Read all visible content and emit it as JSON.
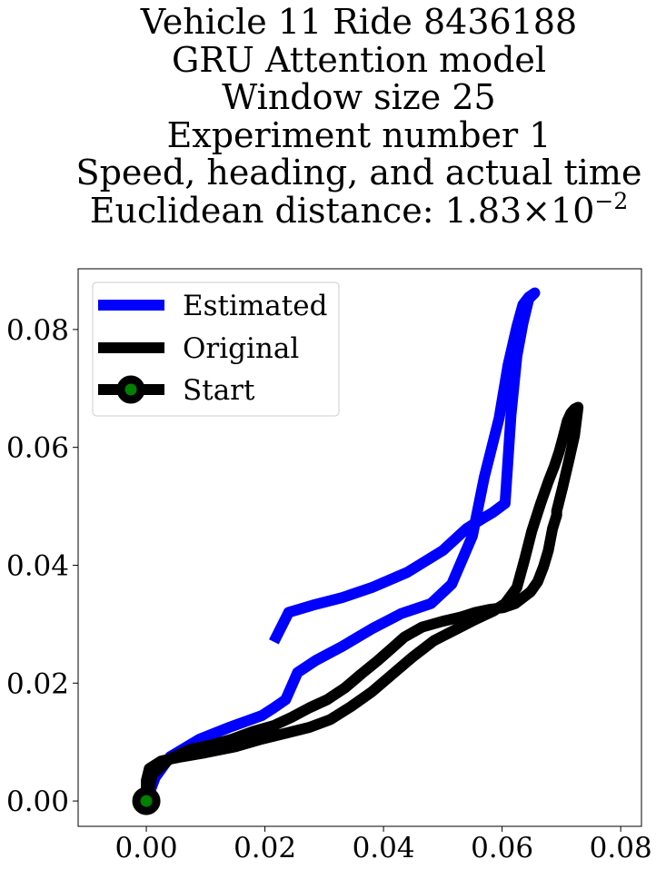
{
  "title": {
    "lines": [
      "Vehicle 11 Ride 8436188",
      "GRU Attention model",
      "Window size 25",
      "Experiment number 1",
      "Speed, heading, and actual time"
    ],
    "distance_prefix": "Euclidean distance: 1.83×10",
    "distance_exponent": "−2"
  },
  "chart_data": {
    "type": "line",
    "xlim": [
      -0.0115,
      0.0835
    ],
    "ylim": [
      -0.0043,
      0.0903
    ],
    "xticks": [
      0.0,
      0.02,
      0.04,
      0.06,
      0.08
    ],
    "xtick_labels": [
      "0.00",
      "0.02",
      "0.04",
      "0.06",
      "0.08"
    ],
    "yticks": [
      0.0,
      0.02,
      0.04,
      0.06,
      0.08
    ],
    "ytick_labels": [
      "0.00",
      "0.02",
      "0.04",
      "0.06",
      "0.08"
    ],
    "grid": false,
    "legend_position": "upper left",
    "series": [
      {
        "name": "Estimated",
        "color": "#0000ff",
        "x": [
          0.0,
          0.0015,
          0.004,
          0.009,
          0.014,
          0.0195,
          0.0215,
          0.0235,
          0.0255,
          0.0285,
          0.033,
          0.038,
          0.043,
          0.048,
          0.0515,
          0.055,
          0.057,
          0.0595,
          0.061,
          0.0625,
          0.0635,
          0.0645,
          0.0655,
          0.0645,
          0.0635,
          0.0625,
          0.0615,
          0.0605,
          0.0585,
          0.0565,
          0.054,
          0.05,
          0.044,
          0.038,
          0.033,
          0.028,
          0.024,
          0.0215
        ],
        "y": [
          0.0,
          0.004,
          0.0075,
          0.0105,
          0.0125,
          0.0145,
          0.0158,
          0.0172,
          0.0218,
          0.0238,
          0.0262,
          0.0292,
          0.0318,
          0.0335,
          0.0368,
          0.045,
          0.055,
          0.065,
          0.074,
          0.0805,
          0.0842,
          0.0855,
          0.0862,
          0.0852,
          0.081,
          0.0755,
          0.0655,
          0.0505,
          0.049,
          0.0478,
          0.0462,
          0.0425,
          0.0388,
          0.0362,
          0.0345,
          0.0332,
          0.032,
          0.027
        ]
      },
      {
        "name": "Original",
        "color": "#000000",
        "x": [
          0.0,
          0.0,
          0.0005,
          0.0025,
          0.006,
          0.01,
          0.015,
          0.0195,
          0.0235,
          0.0275,
          0.031,
          0.0345,
          0.038,
          0.0415,
          0.045,
          0.0485,
          0.052,
          0.0555,
          0.0585,
          0.0605,
          0.0625,
          0.0638,
          0.065,
          0.0665,
          0.0678,
          0.0688,
          0.0696,
          0.0703,
          0.071,
          0.0716,
          0.0722,
          0.0728,
          0.0722,
          0.0712,
          0.0702,
          0.0692,
          0.0692,
          0.0685,
          0.0678,
          0.067,
          0.066,
          0.0648,
          0.0635,
          0.0622,
          0.0602,
          0.0578,
          0.0555,
          0.053,
          0.05,
          0.0465,
          0.0435,
          0.0415,
          0.039,
          0.0362,
          0.0335,
          0.0305,
          0.0275,
          0.0245,
          0.0215,
          0.018,
          0.0145,
          0.011,
          0.0075,
          0.004,
          0.001,
          0.0
        ],
        "y": [
          0.0,
          0.0035,
          0.0055,
          0.0068,
          0.0075,
          0.0082,
          0.0092,
          0.0105,
          0.0115,
          0.0125,
          0.0138,
          0.016,
          0.0185,
          0.0215,
          0.0245,
          0.0272,
          0.029,
          0.0308,
          0.0322,
          0.0335,
          0.0362,
          0.041,
          0.0458,
          0.0505,
          0.0542,
          0.0568,
          0.0592,
          0.0618,
          0.0645,
          0.0658,
          0.0665,
          0.0668,
          0.062,
          0.0575,
          0.0532,
          0.0492,
          0.0485,
          0.0462,
          0.0425,
          0.0398,
          0.0372,
          0.0355,
          0.0345,
          0.0335,
          0.0328,
          0.0325,
          0.032,
          0.0312,
          0.0305,
          0.0295,
          0.0278,
          0.026,
          0.0238,
          0.0215,
          0.0192,
          0.0172,
          0.0158,
          0.0142,
          0.0128,
          0.0118,
          0.0105,
          0.0095,
          0.0088,
          0.0072,
          0.0045,
          0.0
        ]
      },
      {
        "name": "Start",
        "color": "#000000",
        "marker_face": "#008000",
        "x": [
          0.0
        ],
        "y": [
          0.0
        ]
      }
    ]
  }
}
